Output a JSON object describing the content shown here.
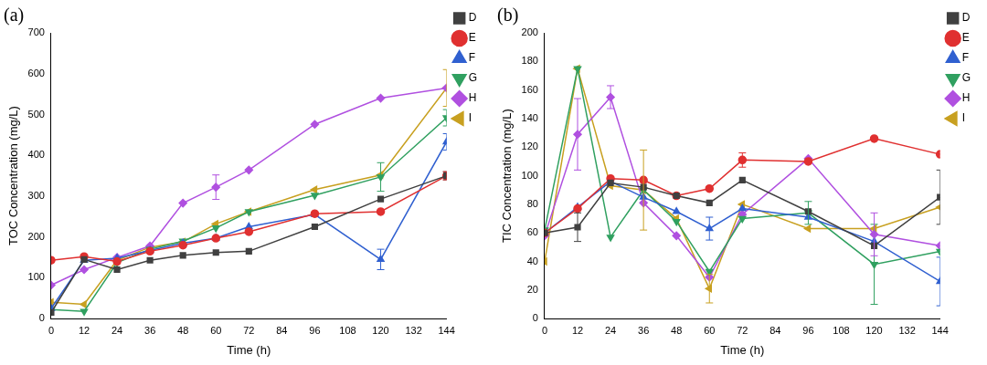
{
  "chart_data": [
    {
      "type": "line",
      "title": "(a)",
      "xlabel": "Time (h)",
      "ylabel": "TOC Concentration (mg/L)",
      "x": [
        0,
        12,
        24,
        36,
        48,
        60,
        72,
        96,
        120,
        144
      ],
      "xlim": [
        0,
        144
      ],
      "xticks": [
        0,
        12,
        24,
        36,
        48,
        60,
        72,
        84,
        96,
        108,
        120,
        132,
        144
      ],
      "ylim": [
        0,
        700
      ],
      "yticks": [
        0,
        100,
        200,
        300,
        400,
        500,
        600,
        700
      ],
      "grid": false,
      "legend": "right",
      "series": [
        {
          "name": "D",
          "color": "#404040",
          "marker": "square",
          "values": [
            15,
            145,
            120,
            143,
            155,
            162,
            165,
            225,
            293,
            350
          ],
          "errors": [
            null,
            null,
            null,
            null,
            null,
            null,
            null,
            null,
            null,
            10
          ]
        },
        {
          "name": "E",
          "color": "#e03030",
          "marker": "circle",
          "values": [
            143,
            152,
            140,
            165,
            180,
            197,
            213,
            257,
            262,
            350
          ],
          "errors": [
            null,
            null,
            null,
            null,
            null,
            null,
            null,
            null,
            null,
            10
          ]
        },
        {
          "name": "F",
          "color": "#3060d0",
          "marker": "triangle_up",
          "values": [
            25,
            143,
            148,
            167,
            185,
            197,
            225,
            255,
            145,
            433
          ],
          "errors": [
            null,
            null,
            null,
            null,
            null,
            null,
            null,
            null,
            25,
            20
          ]
        },
        {
          "name": "G",
          "color": "#30a060",
          "marker": "triangle_down",
          "values": [
            22,
            18,
            137,
            170,
            190,
            222,
            262,
            302,
            347,
            492
          ],
          "errors": [
            null,
            null,
            null,
            null,
            null,
            null,
            null,
            null,
            35,
            20
          ]
        },
        {
          "name": "H",
          "color": "#b050e0",
          "marker": "diamond",
          "values": [
            82,
            120,
            150,
            178,
            283,
            322,
            364,
            476,
            540,
            565
          ],
          "errors": [
            null,
            null,
            null,
            null,
            null,
            30,
            null,
            null,
            null,
            null
          ]
        },
        {
          "name": "I",
          "color": "#c8a020",
          "marker": "triangle_left",
          "values": [
            40,
            35,
            143,
            175,
            188,
            232,
            262,
            316,
            352,
            565
          ],
          "errors": [
            null,
            null,
            null,
            null,
            null,
            null,
            null,
            null,
            null,
            45
          ]
        }
      ]
    },
    {
      "type": "line",
      "title": "(b)",
      "xlabel": "Time (h)",
      "ylabel": "TIC Concentration (mg/L)",
      "x": [
        0,
        12,
        24,
        36,
        48,
        60,
        72,
        96,
        120,
        144
      ],
      "xlim": [
        0,
        144
      ],
      "xticks": [
        0,
        12,
        24,
        36,
        48,
        60,
        72,
        84,
        96,
        108,
        120,
        132,
        144
      ],
      "ylim": [
        0,
        200
      ],
      "yticks": [
        0,
        20,
        40,
        60,
        80,
        100,
        120,
        140,
        160,
        180,
        200
      ],
      "grid": false,
      "legend": "right",
      "series": [
        {
          "name": "D",
          "color": "#404040",
          "marker": "square",
          "values": [
            60,
            64,
            95,
            92,
            86,
            81,
            97,
            75,
            51,
            85
          ],
          "errors": [
            null,
            10,
            null,
            null,
            null,
            null,
            null,
            null,
            null,
            19
          ]
        },
        {
          "name": "E",
          "color": "#e03030",
          "marker": "circle",
          "values": [
            60,
            77,
            98,
            97,
            86,
            91,
            111,
            110,
            126,
            115
          ],
          "errors": [
            null,
            null,
            null,
            null,
            null,
            null,
            5,
            null,
            null,
            null
          ]
        },
        {
          "name": "F",
          "color": "#3060d0",
          "marker": "triangle_up",
          "values": [
            60,
            78,
            96,
            85,
            75,
            63,
            77,
            71,
            54,
            26
          ],
          "errors": [
            null,
            null,
            null,
            null,
            null,
            8,
            null,
            null,
            null,
            17
          ]
        },
        {
          "name": "G",
          "color": "#30a060",
          "marker": "triangle_down",
          "values": [
            62,
            175,
            57,
            90,
            68,
            33,
            70,
            74,
            38,
            47
          ],
          "errors": [
            null,
            null,
            null,
            null,
            null,
            null,
            null,
            8,
            28,
            null
          ]
        },
        {
          "name": "H",
          "color": "#b050e0",
          "marker": "diamond",
          "values": [
            58,
            129,
            155,
            81,
            58,
            29,
            73,
            112,
            59,
            51
          ],
          "errors": [
            null,
            25,
            8,
            null,
            null,
            null,
            null,
            null,
            15,
            null
          ]
        },
        {
          "name": "I",
          "color": "#c8a020",
          "marker": "triangle_left",
          "values": [
            40,
            175,
            93,
            90,
            70,
            21,
            80,
            63,
            63,
            78
          ],
          "errors": [
            null,
            null,
            null,
            28,
            null,
            10,
            null,
            null,
            null,
            null
          ]
        }
      ]
    }
  ]
}
